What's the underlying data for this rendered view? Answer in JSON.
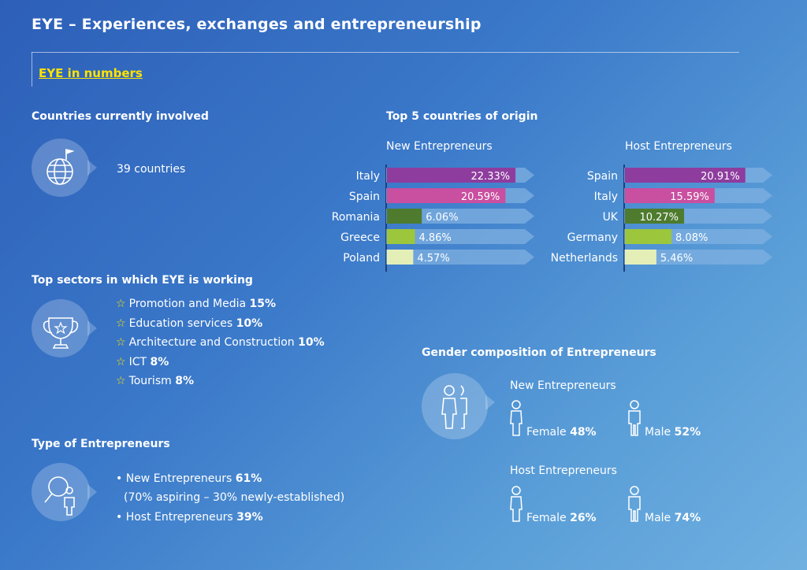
{
  "header": {
    "title": "EYE – Experiences, exchanges and entrepreneurship",
    "subtitle": "EYE in numbers"
  },
  "countries": {
    "heading": "Countries currently involved",
    "value": "39 countries",
    "icon": "globe-flag-icon"
  },
  "sectors": {
    "heading": "Top sectors in which EYE is working",
    "icon": "trophy-icon",
    "items": [
      {
        "label": "Promotion and Media",
        "value": "15%"
      },
      {
        "label": "Education services",
        "value": "10%"
      },
      {
        "label": "Architecture and Construction",
        "value": "10%"
      },
      {
        "label": "ICT",
        "value": "8%"
      },
      {
        "label": "Tourism",
        "value": "8%"
      }
    ]
  },
  "types": {
    "heading": "Type of Entrepreneurs",
    "icon": "magnifier-person-icon",
    "new_label": "• New Entrepreneurs",
    "new_value": "61%",
    "new_note": "(70% aspiring – 30% newly-established)",
    "host_label": "• Host Entrepreneurs",
    "host_value": "39%"
  },
  "gender": {
    "heading": "Gender composition of Entrepreneurs",
    "icon": "people-icon",
    "new_title": "New Entrepreneurs",
    "new_female_label": "Female",
    "new_female_value": "48%",
    "new_male_label": "Male",
    "new_male_value": "52%",
    "host_title": "Host Entrepreneurs",
    "host_female_label": "Female",
    "host_female_value": "26%",
    "host_male_label": "Male",
    "host_male_value": "74%"
  },
  "colors": {
    "accent_yellow": "#ffe300",
    "rank1": "#8e3c9e",
    "rank2": "#c94fa0",
    "rank3": "#4e7b2e",
    "rank4": "#9cc63b",
    "rank5": "#e4efb8",
    "arrow_bg": "#7fb0e0"
  },
  "chart_data": [
    {
      "type": "bar",
      "title": "Top 5 countries of origin",
      "subtitle": "New Entrepreneurs",
      "categories": [
        "Italy",
        "Spain",
        "Romania",
        "Greece",
        "Poland"
      ],
      "values": [
        22.33,
        20.59,
        6.06,
        4.86,
        4.57
      ],
      "value_labels": [
        "22.33%",
        "20.59%",
        "6.06%",
        "4.86%",
        "4.57%"
      ],
      "unit": "%",
      "orientation": "horizontal"
    },
    {
      "type": "bar",
      "subtitle": "Host Entrepreneurs",
      "categories": [
        "Spain",
        "Italy",
        "UK",
        "Germany",
        "Netherlands"
      ],
      "values": [
        20.91,
        15.59,
        10.27,
        8.08,
        5.46
      ],
      "value_labels": [
        "20.91%",
        "15.59%",
        "10.27%",
        "8.08%",
        "5.46%"
      ],
      "unit": "%",
      "orientation": "horizontal"
    }
  ]
}
